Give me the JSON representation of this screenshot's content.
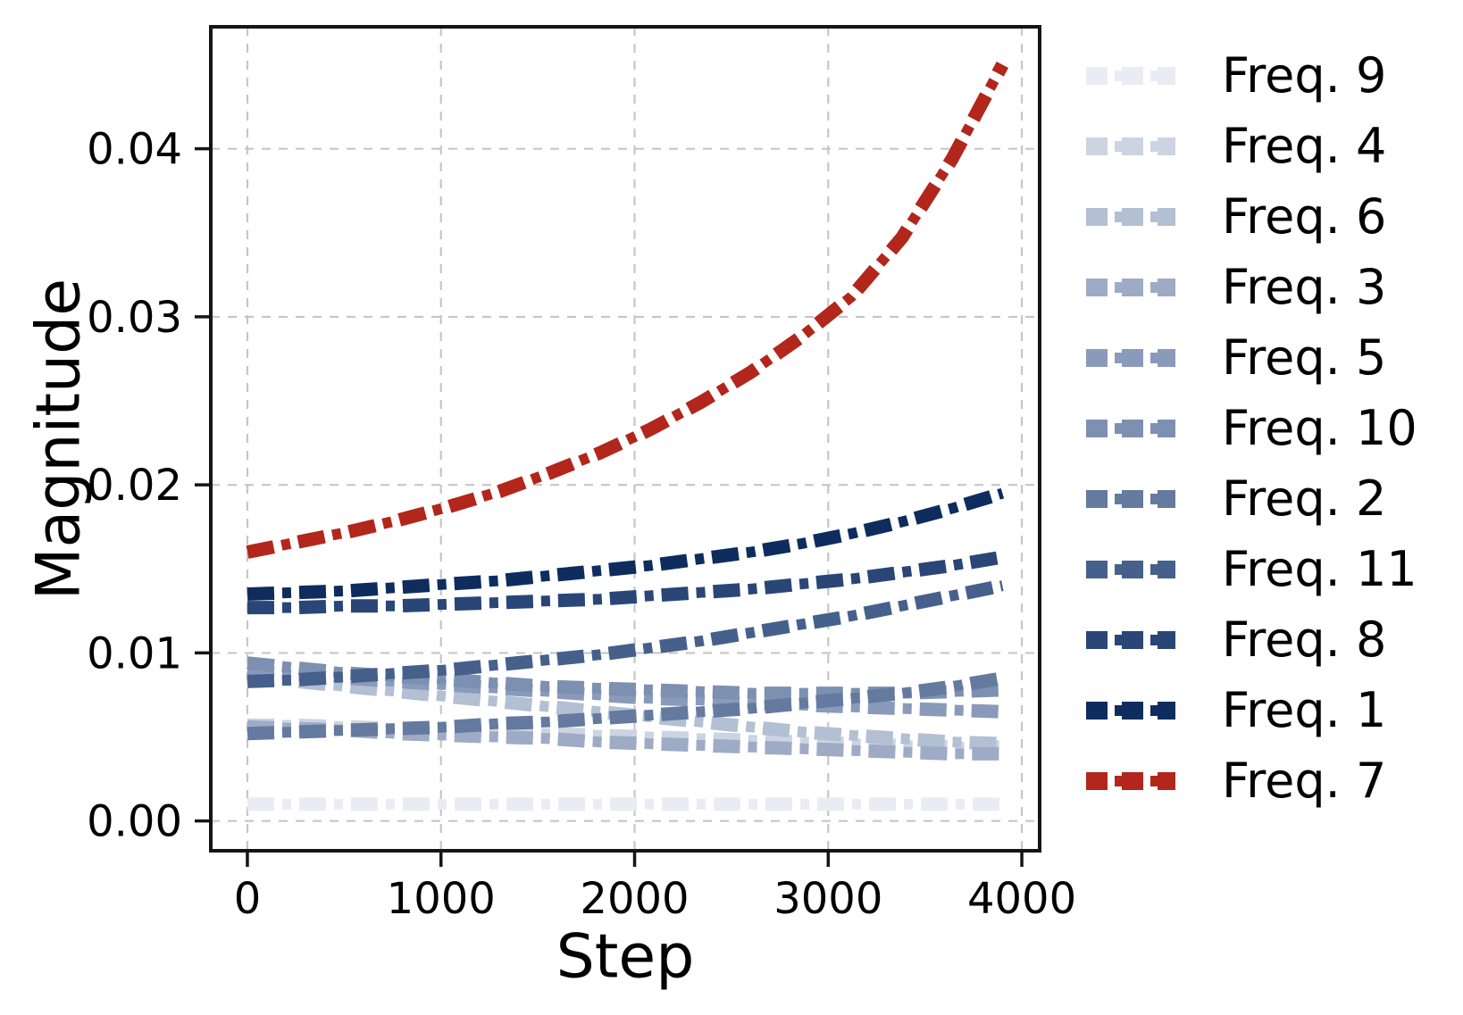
{
  "chart_data": {
    "type": "line",
    "style": "dashed-with-x-markers",
    "title": "",
    "xlabel": "Step",
    "ylabel": "Magnitude",
    "grid": true,
    "grid_color": "#c6c6c6",
    "spine_color": "#151515",
    "background": "#ffffff",
    "legend_position": "right",
    "xlim": [
      -189,
      4092
    ],
    "ylim": [
      -0.00177,
      0.04726
    ],
    "xticks": {
      "values": [
        0,
        1000,
        2000,
        3000,
        4000
      ],
      "labels": [
        "0",
        "1000",
        "2000",
        "3000",
        "4000"
      ]
    },
    "yticks": {
      "values": [
        0.0,
        0.01,
        0.02,
        0.03,
        0.04
      ],
      "labels": [
        "0.00",
        "0.01",
        "0.02",
        "0.03",
        "0.04"
      ]
    },
    "x": [
      0,
      260,
      520,
      780,
      1040,
      1300,
      1560,
      1820,
      2080,
      2340,
      2600,
      2860,
      3120,
      3380,
      3640,
      3900
    ],
    "series": [
      {
        "name": "Freq. 9",
        "color": "#e9edf3",
        "values": [
          0.001,
          0.001,
          0.001,
          0.001,
          0.001,
          0.001,
          0.001,
          0.001,
          0.001,
          0.001,
          0.001,
          0.001,
          0.001,
          0.001,
          0.001,
          0.001
        ]
      },
      {
        "name": "Freq. 4",
        "color": "#ccd4e1",
        "values": [
          0.0057,
          0.0057,
          0.0056,
          0.0055,
          0.0054,
          0.0053,
          0.0052,
          0.0051,
          0.005,
          0.0049,
          0.0048,
          0.0047,
          0.0046,
          0.0045,
          0.0044,
          0.0044
        ]
      },
      {
        "name": "Freq. 6",
        "color": "#b3bfd2",
        "values": [
          0.0086,
          0.0083,
          0.008,
          0.0077,
          0.0074,
          0.0071,
          0.0068,
          0.0065,
          0.0062,
          0.0059,
          0.0056,
          0.0053,
          0.0051,
          0.0049,
          0.0047,
          0.0046
        ]
      },
      {
        "name": "Freq. 3",
        "color": "#9dabc5",
        "values": [
          0.0056,
          0.0055,
          0.0054,
          0.0052,
          0.0051,
          0.005,
          0.0049,
          0.0047,
          0.0046,
          0.0045,
          0.0044,
          0.0043,
          0.0042,
          0.0041,
          0.004,
          0.004
        ]
      },
      {
        "name": "Freq. 5",
        "color": "#8a9aba",
        "values": [
          0.0089,
          0.0087,
          0.0085,
          0.0083,
          0.0081,
          0.0079,
          0.0077,
          0.0075,
          0.0073,
          0.0072,
          0.007,
          0.0069,
          0.0068,
          0.0067,
          0.0066,
          0.0065
        ]
      },
      {
        "name": "Freq. 10",
        "color": "#7d90b1",
        "values": [
          0.0094,
          0.0091,
          0.0088,
          0.0086,
          0.0084,
          0.0082,
          0.008,
          0.0079,
          0.0078,
          0.0077,
          0.0076,
          0.0076,
          0.0076,
          0.0076,
          0.0077,
          0.0078
        ]
      },
      {
        "name": "Freq. 2",
        "color": "#647a9f",
        "values": [
          0.0052,
          0.0053,
          0.0054,
          0.0055,
          0.0056,
          0.0058,
          0.0059,
          0.0061,
          0.0063,
          0.0065,
          0.0067,
          0.007,
          0.0073,
          0.0076,
          0.008,
          0.0085
        ]
      },
      {
        "name": "Freq. 11",
        "color": "#46608c",
        "values": [
          0.0083,
          0.0084,
          0.0086,
          0.0088,
          0.009,
          0.0093,
          0.0096,
          0.0099,
          0.0103,
          0.0107,
          0.0112,
          0.0117,
          0.0122,
          0.0128,
          0.0134,
          0.014
        ]
      },
      {
        "name": "Freq. 8",
        "color": "#294677",
        "values": [
          0.0127,
          0.0127,
          0.0128,
          0.0128,
          0.0129,
          0.013,
          0.0131,
          0.0132,
          0.0134,
          0.0136,
          0.0138,
          0.0141,
          0.0144,
          0.0148,
          0.0152,
          0.0157
        ]
      },
      {
        "name": "Freq. 1",
        "color": "#0e2d5e",
        "values": [
          0.0135,
          0.0136,
          0.0137,
          0.0139,
          0.0141,
          0.0143,
          0.0146,
          0.0149,
          0.0152,
          0.0156,
          0.016,
          0.0165,
          0.0171,
          0.0178,
          0.0186,
          0.0195
        ]
      },
      {
        "name": "Freq. 7",
        "color": "#b2261b",
        "values": [
          0.016,
          0.0166,
          0.0172,
          0.0179,
          0.0187,
          0.0196,
          0.0207,
          0.0219,
          0.0233,
          0.0249,
          0.0267,
          0.0288,
          0.0312,
          0.0347,
          0.0394,
          0.045
        ]
      }
    ]
  }
}
